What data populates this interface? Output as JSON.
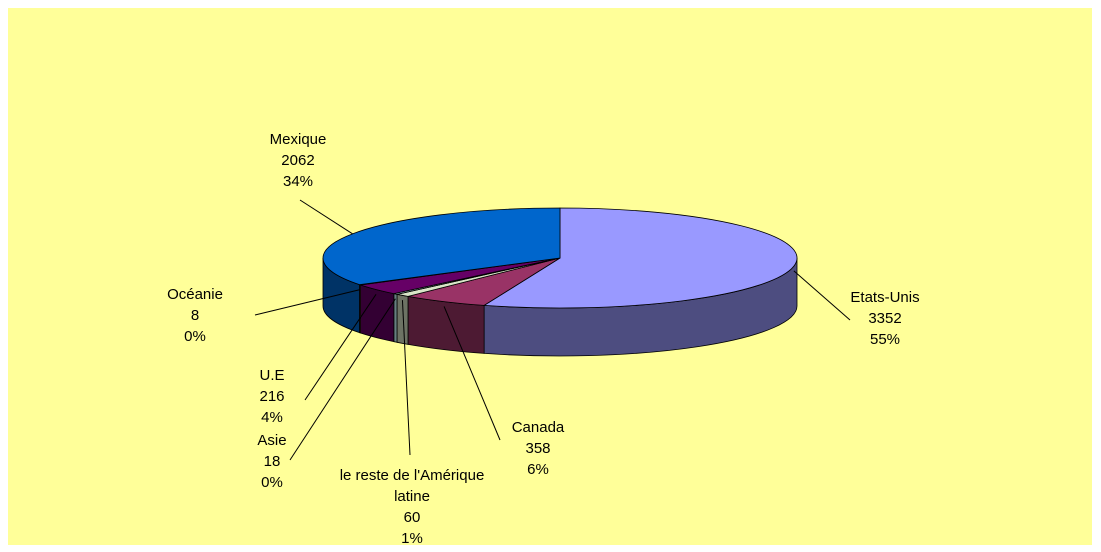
{
  "chart_data": {
    "type": "pie3d",
    "categories": [
      "Etats-Unis",
      "Canada",
      "le reste de l'Amérique latine",
      "Asie",
      "U.E",
      "Océanie",
      "Mexique"
    ],
    "values": [
      3352,
      358,
      60,
      18,
      216,
      8,
      2062
    ],
    "percent_labels": [
      "55%",
      "6%",
      "1%",
      "0%",
      "4%",
      "0%",
      "34%"
    ],
    "colors": [
      "#9999ff",
      "#993366",
      "#d9e6c8",
      "#ccffff",
      "#660066",
      "#ff8080",
      "#0066cc"
    ]
  }
}
